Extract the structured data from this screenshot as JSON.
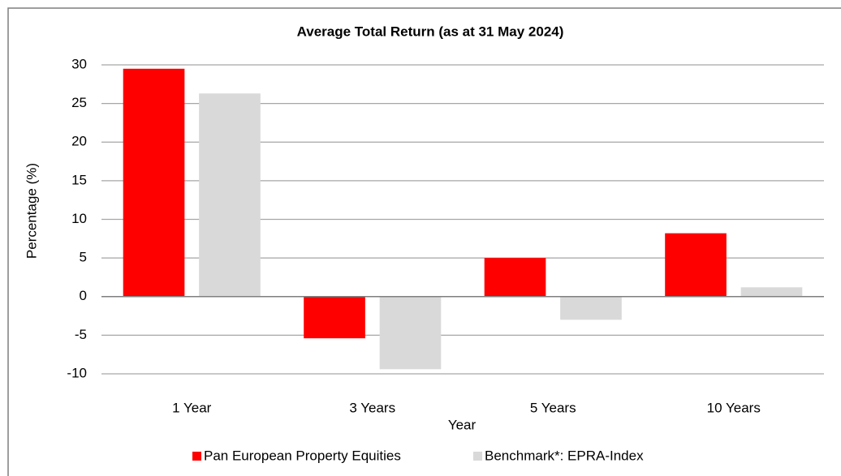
{
  "chart_data": {
    "type": "bar",
    "title": "Average Total Return (as at 31 May 2024)",
    "x_label": "Year",
    "y_label": "Percentage (%)",
    "categories": [
      "1 Year",
      "3 Years",
      "5 Years",
      "10 Years"
    ],
    "series": [
      {
        "name": "Pan European Property Equities",
        "color": "#ff0000",
        "values": [
          29.5,
          -5.4,
          5.0,
          8.2
        ]
      },
      {
        "name": "Benchmark*: EPRA-Index",
        "color": "#d9d9d9",
        "values": [
          26.3,
          -9.4,
          -3.0,
          1.2
        ]
      }
    ],
    "ylim": [
      -10,
      30
    ],
    "yticks": [
      -10,
      -5,
      0,
      5,
      10,
      15,
      20,
      25,
      30
    ],
    "grid": true,
    "legend": "bottom"
  }
}
